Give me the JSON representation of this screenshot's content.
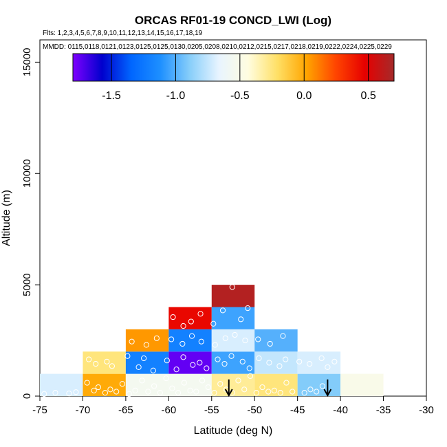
{
  "chart_data": {
    "type": "heatmap",
    "title": "ORCAS RF01-19 CONCD_LWI (Log)",
    "flights_label": "Flts: 1,2,3,4,5,6,7,8,9,10,11,12,13,14,15,16,17,18,19",
    "dates_label": "MMDD: 0115,0118,0121,0123,0125,0125,0130,0205,0208,0210,0212,0215,0217,0218,0219,0222,0224,0225,0229",
    "xlabel": "Latitude (deg N)",
    "ylabel": "Altitude (m)",
    "xlim": [
      -75,
      -30
    ],
    "ylim": [
      0,
      16000
    ],
    "x_ticks": [
      -75,
      -70,
      -65,
      -60,
      -55,
      -50,
      -45,
      -40,
      -35,
      -30
    ],
    "x_tick_labels": [
      "-75",
      "-70",
      "-65",
      "-60",
      "-55",
      "-50",
      "-45",
      "-40",
      "-35",
      "-30"
    ],
    "y_ticks": [
      0,
      5000,
      10000,
      15000
    ],
    "y_tick_labels": [
      "0",
      "5000",
      "10000",
      "15000"
    ],
    "colorbar": {
      "range": [
        -1.8,
        0.7
      ],
      "ticks": [
        -1.5,
        -1.0,
        -0.5,
        0.0,
        0.5
      ],
      "tick_labels": [
        "-1.5",
        "-1.0",
        "-0.5",
        "0.0",
        "0.5"
      ],
      "colors": [
        "#7f00ff",
        "#0000cd",
        "#0066ff",
        "#1e90ff",
        "#87cefa",
        "#e8f4ff",
        "#fffde0",
        "#ffe066",
        "#ffa500",
        "#ff4500",
        "#e60000",
        "#a52a2a"
      ]
    },
    "cells": [
      {
        "lat_min": -75,
        "lat_max": -70,
        "alt_min": 0,
        "alt_max": 1000,
        "value": -0.7
      },
      {
        "lat_min": -70,
        "lat_max": -65,
        "alt_min": 0,
        "alt_max": 1000,
        "value": 0.0
      },
      {
        "lat_min": -65,
        "lat_max": -60,
        "alt_min": 0,
        "alt_max": 1000,
        "value": -0.55
      },
      {
        "lat_min": -60,
        "lat_max": -55,
        "alt_min": 0,
        "alt_max": 1000,
        "value": -0.55
      },
      {
        "lat_min": -55,
        "lat_max": -50,
        "alt_min": 0,
        "alt_max": 1000,
        "value": -0.3
      },
      {
        "lat_min": -50,
        "lat_max": -45,
        "alt_min": 0,
        "alt_max": 1000,
        "value": -0.25
      },
      {
        "lat_min": -45,
        "lat_max": -40,
        "alt_min": 0,
        "alt_max": 1000,
        "value": -0.9
      },
      {
        "lat_min": -40,
        "lat_max": -35,
        "alt_min": 0,
        "alt_max": 1000,
        "value": -0.5
      },
      {
        "lat_min": -70,
        "lat_max": -65,
        "alt_min": 1000,
        "alt_max": 2000,
        "value": -0.25
      },
      {
        "lat_min": -65,
        "lat_max": -60,
        "alt_min": 1000,
        "alt_max": 2000,
        "value": -1.2
      },
      {
        "lat_min": -60,
        "lat_max": -55,
        "alt_min": 1000,
        "alt_max": 2000,
        "value": -1.75
      },
      {
        "lat_min": -55,
        "lat_max": -50,
        "alt_min": 1000,
        "alt_max": 2000,
        "value": -1.05
      },
      {
        "lat_min": -50,
        "lat_max": -45,
        "alt_min": 1000,
        "alt_max": 2000,
        "value": -0.75
      },
      {
        "lat_min": -45,
        "lat_max": -40,
        "alt_min": 1000,
        "alt_max": 2000,
        "value": -0.7
      },
      {
        "lat_min": -65,
        "lat_max": -60,
        "alt_min": 2000,
        "alt_max": 3000,
        "value": 0.05
      },
      {
        "lat_min": -60,
        "lat_max": -55,
        "alt_min": 2000,
        "alt_max": 3000,
        "value": -1.2
      },
      {
        "lat_min": -55,
        "lat_max": -50,
        "alt_min": 2000,
        "alt_max": 3000,
        "value": -0.7
      },
      {
        "lat_min": -50,
        "lat_max": -45,
        "alt_min": 2000,
        "alt_max": 3000,
        "value": -1.0
      },
      {
        "lat_min": -60,
        "lat_max": -55,
        "alt_min": 3000,
        "alt_max": 4000,
        "value": 0.45
      },
      {
        "lat_min": -55,
        "lat_max": -50,
        "alt_min": 3000,
        "alt_max": 4000,
        "value": -1.05
      },
      {
        "lat_min": -55,
        "lat_max": -50,
        "alt_min": 4000,
        "alt_max": 5000,
        "value": 0.65
      }
    ],
    "points": [
      [
        -74.5,
        100
      ],
      [
        -73.2,
        150
      ],
      [
        -71.6,
        120
      ],
      [
        -70.8,
        180
      ],
      [
        -69.5,
        600
      ],
      [
        -68.7,
        250
      ],
      [
        -68.2,
        400
      ],
      [
        -67.4,
        150
      ],
      [
        -66.8,
        300
      ],
      [
        -66.1,
        200
      ],
      [
        -65.4,
        550
      ],
      [
        -64.6,
        100
      ],
      [
        -63.9,
        250
      ],
      [
        -63.1,
        700
      ],
      [
        -62.4,
        200
      ],
      [
        -61.7,
        450
      ],
      [
        -61.0,
        150
      ],
      [
        -60.3,
        800
      ],
      [
        -59.6,
        350
      ],
      [
        -58.9,
        150
      ],
      [
        -58.2,
        600
      ],
      [
        -57.5,
        250
      ],
      [
        -56.8,
        200
      ],
      [
        -56.1,
        700
      ],
      [
        -55.4,
        400
      ],
      [
        -54.7,
        150
      ],
      [
        -54.0,
        550
      ],
      [
        -53.3,
        300
      ],
      [
        -52.6,
        150
      ],
      [
        -51.9,
        700
      ],
      [
        -51.2,
        300
      ],
      [
        -50.5,
        900
      ],
      [
        -49.8,
        150
      ],
      [
        -49.1,
        400
      ],
      [
        -48.4,
        200
      ],
      [
        -47.7,
        250
      ],
      [
        -47.0,
        150
      ],
      [
        -46.3,
        600
      ],
      [
        -45.6,
        200
      ],
      [
        -44.2,
        150
      ],
      [
        -43.5,
        300
      ],
      [
        -42.8,
        200
      ],
      [
        -42.1,
        450
      ],
      [
        -69.3,
        1650
      ],
      [
        -68.5,
        1450
      ],
      [
        -67.2,
        1550
      ],
      [
        -66.6,
        1350
      ],
      [
        -64.8,
        1800
      ],
      [
        -63.5,
        1300
      ],
      [
        -62.9,
        1700
      ],
      [
        -61.8,
        1150
      ],
      [
        -60.2,
        1600
      ],
      [
        -59.1,
        1200
      ],
      [
        -58.3,
        1750
      ],
      [
        -57.2,
        1400
      ],
      [
        -56.4,
        1500
      ],
      [
        -55.6,
        1250
      ],
      [
        -54.3,
        1650
      ],
      [
        -53.5,
        1450
      ],
      [
        -52.7,
        1800
      ],
      [
        -51.4,
        1550
      ],
      [
        -50.6,
        1250
      ],
      [
        -49.5,
        1700
      ],
      [
        -48.3,
        1500
      ],
      [
        -47.1,
        1350
      ],
      [
        -46.4,
        1650
      ],
      [
        -44.8,
        1550
      ],
      [
        -43.6,
        1450
      ],
      [
        -42.2,
        1700
      ],
      [
        -41.5,
        1300
      ],
      [
        -40.7,
        1550
      ],
      [
        -64.3,
        2450
      ],
      [
        -62.6,
        2300
      ],
      [
        -61.4,
        2600
      ],
      [
        -59.7,
        2550
      ],
      [
        -58.4,
        2350
      ],
      [
        -57.3,
        2700
      ],
      [
        -56.2,
        2450
      ],
      [
        -54.6,
        2300
      ],
      [
        -53.4,
        2600
      ],
      [
        -52.3,
        2750
      ],
      [
        -51.1,
        2500
      ],
      [
        -49.6,
        2550
      ],
      [
        -48.2,
        2350
      ],
      [
        -46.7,
        2700
      ],
      [
        -59.5,
        3550
      ],
      [
        -58.3,
        3150
      ],
      [
        -57.4,
        3350
      ],
      [
        -56.3,
        3700
      ],
      [
        -54.8,
        3250
      ],
      [
        -53.7,
        3850
      ],
      [
        -51.6,
        3450
      ],
      [
        -50.8,
        3950
      ],
      [
        -52.6,
        4900
      ]
    ],
    "arrows": [
      {
        "lat": -53,
        "alt_top": 750,
        "alt_bottom": 30
      },
      {
        "lat": -41.5,
        "alt_top": 750,
        "alt_bottom": 30
      }
    ]
  }
}
